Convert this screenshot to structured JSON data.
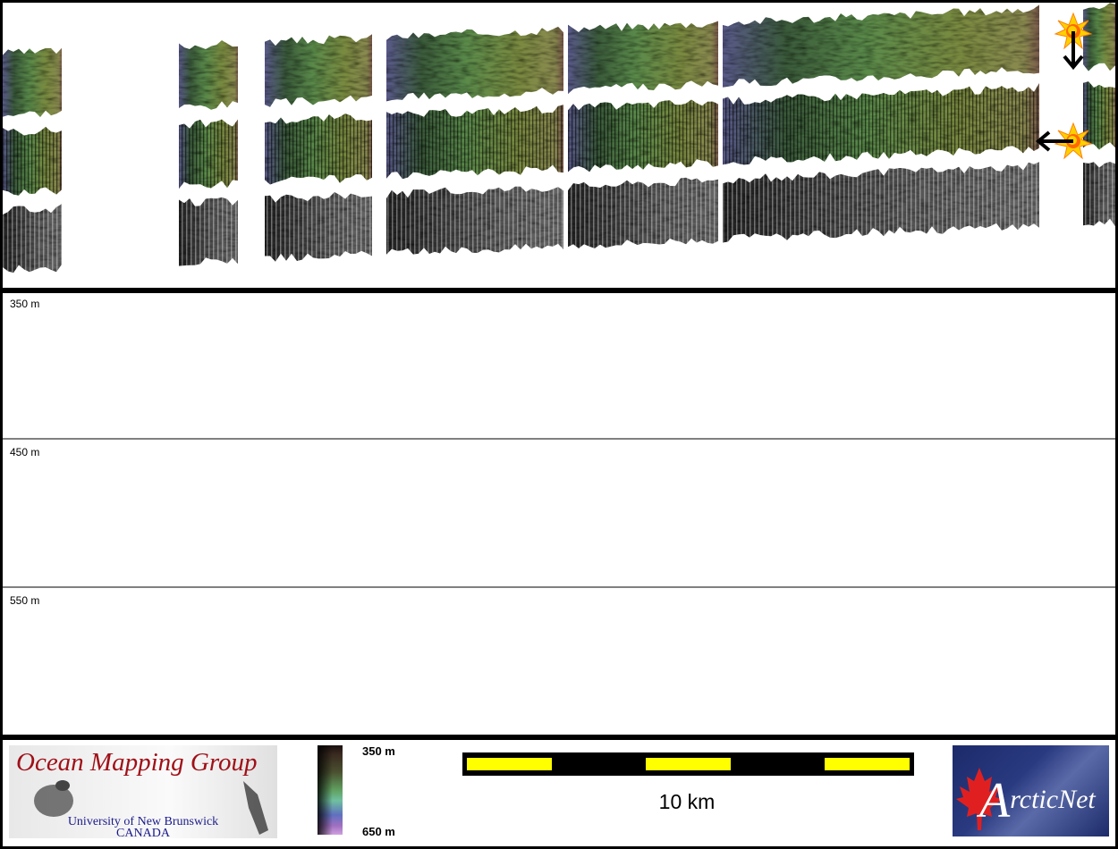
{
  "profile": {
    "depth_labels": [
      "350 m",
      "450 m",
      "550 m"
    ]
  },
  "footer": {
    "omg_logo": {
      "title": "Ocean Mapping Group",
      "line1": "University of New Brunswick",
      "line2": "CANADA"
    },
    "colorbar": {
      "top_label": "350 m",
      "bottom_label": "650 m"
    },
    "scale": {
      "label": "10 km",
      "bar_color": "#ffff00"
    },
    "arcticnet_logo": {
      "text": "ArcticNet",
      "leaf_color": "#e02020"
    }
  },
  "icons": {
    "sun": "sun-illumination-icon",
    "arrow": "illumination-direction-arrow-icon"
  }
}
